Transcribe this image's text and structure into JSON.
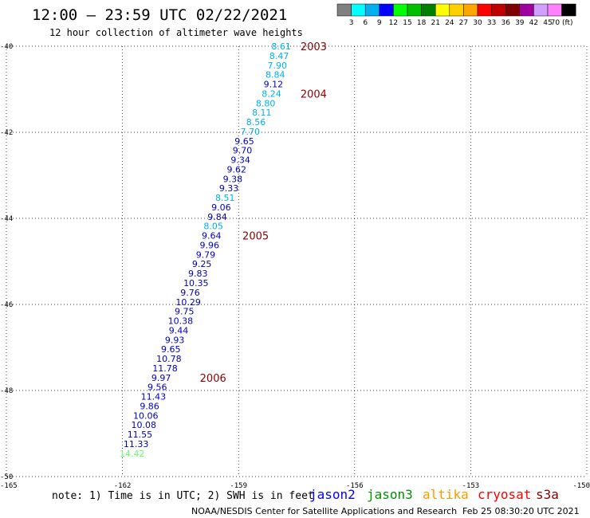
{
  "header": {
    "title": "12:00 – 23:59 UTC 02/22/2021",
    "subtitle": "12 hour collection of altimeter wave heights"
  },
  "color_scale": {
    "labels": [
      "3",
      "6",
      "9",
      "12",
      "15",
      "18",
      "21",
      "24",
      "27",
      "30",
      "33",
      "36",
      "39",
      "42",
      "45",
      "70 (ft)"
    ],
    "colors": [
      "#808080",
      "#00ffff",
      "#00b0f0",
      "#0000ff",
      "#00ff00",
      "#00c000",
      "#008000",
      "#ffff00",
      "#ffd000",
      "#ffa500",
      "#ff0000",
      "#c00000",
      "#800000",
      "#a000a0",
      "#d0a0ff",
      "#ff80ff",
      "#000000"
    ]
  },
  "chart_data": {
    "type": "scatter",
    "title": "12:00 – 23:59 UTC 02/22/2021",
    "subtitle": "12 hour collection of altimeter wave heights",
    "xlim": [
      -165,
      -150
    ],
    "ylim": [
      -50,
      -40
    ],
    "x_tick_labels": [
      "-165",
      "-162",
      "-159",
      "-156",
      "-153",
      "-150"
    ],
    "y_tick_labels": [
      "-40",
      "-42",
      "-44",
      "-46",
      "-48",
      "-50"
    ],
    "grid": true,
    "points": [
      {
        "lon": -157.9,
        "lat": -40.0,
        "swh": "8.61",
        "color": "#00b0f0"
      },
      {
        "lon": -157.95,
        "lat": -40.22,
        "swh": "8.47",
        "color": "#00b0f0"
      },
      {
        "lon": -158.0,
        "lat": -40.44,
        "swh": "7.90",
        "color": "#00b0f0"
      },
      {
        "lon": -158.05,
        "lat": -40.66,
        "swh": "8.84",
        "color": "#00b0f0"
      },
      {
        "lon": -158.1,
        "lat": -40.88,
        "swh": "9.12",
        "color": "#0000c0"
      },
      {
        "lon": -158.15,
        "lat": -41.1,
        "swh": "8.24",
        "color": "#00b0f0"
      },
      {
        "lon": -158.3,
        "lat": -41.32,
        "swh": "8.80",
        "color": "#00b0f0"
      },
      {
        "lon": -158.4,
        "lat": -41.54,
        "swh": "8.11",
        "color": "#00b0f0"
      },
      {
        "lon": -158.55,
        "lat": -41.76,
        "swh": "8.56",
        "color": "#00b0f0"
      },
      {
        "lon": -158.7,
        "lat": -41.98,
        "swh": "7.70",
        "color": "#00b0f0"
      },
      {
        "lon": -158.85,
        "lat": -42.2,
        "swh": "9.65",
        "color": "#0000c0"
      },
      {
        "lon": -158.9,
        "lat": -42.42,
        "swh": "9.70",
        "color": "#0000c0"
      },
      {
        "lon": -158.95,
        "lat": -42.64,
        "swh": "9.34",
        "color": "#0000c0"
      },
      {
        "lon": -159.05,
        "lat": -42.86,
        "swh": "9.62",
        "color": "#0000c0"
      },
      {
        "lon": -159.15,
        "lat": -43.08,
        "swh": "9.38",
        "color": "#0000c0"
      },
      {
        "lon": -159.25,
        "lat": -43.3,
        "swh": "9.33",
        "color": "#0000c0"
      },
      {
        "lon": -159.35,
        "lat": -43.52,
        "swh": "8.51",
        "color": "#00b0f0"
      },
      {
        "lon": -159.45,
        "lat": -43.74,
        "swh": "9.06",
        "color": "#0000c0"
      },
      {
        "lon": -159.55,
        "lat": -43.96,
        "swh": "9.84",
        "color": "#0000c0"
      },
      {
        "lon": -159.65,
        "lat": -44.18,
        "swh": "8.05",
        "color": "#00b0f0"
      },
      {
        "lon": -159.7,
        "lat": -44.4,
        "swh": "9.64",
        "color": "#0000c0"
      },
      {
        "lon": -159.75,
        "lat": -44.62,
        "swh": "9.96",
        "color": "#0000c0"
      },
      {
        "lon": -159.85,
        "lat": -44.84,
        "swh": "9.79",
        "color": "#0000c0"
      },
      {
        "lon": -159.95,
        "lat": -45.06,
        "swh": "9.25",
        "color": "#0000c0"
      },
      {
        "lon": -160.05,
        "lat": -45.28,
        "swh": "9.83",
        "color": "#0000c0"
      },
      {
        "lon": -160.1,
        "lat": -45.5,
        "swh": "10.35",
        "color": "#0000c0"
      },
      {
        "lon": -160.25,
        "lat": -45.72,
        "swh": "9.76",
        "color": "#0000c0"
      },
      {
        "lon": -160.3,
        "lat": -45.94,
        "swh": "10.29",
        "color": "#0000c0"
      },
      {
        "lon": -160.4,
        "lat": -46.16,
        "swh": "9.75",
        "color": "#0000c0"
      },
      {
        "lon": -160.5,
        "lat": -46.38,
        "swh": "10.38",
        "color": "#0000c0"
      },
      {
        "lon": -160.55,
        "lat": -46.6,
        "swh": "9.44",
        "color": "#0000c0"
      },
      {
        "lon": -160.65,
        "lat": -46.82,
        "swh": "9.93",
        "color": "#0000c0"
      },
      {
        "lon": -160.75,
        "lat": -47.04,
        "swh": "9.65",
        "color": "#0000c0"
      },
      {
        "lon": -160.8,
        "lat": -47.26,
        "swh": "10.78",
        "color": "#0000c0"
      },
      {
        "lon": -160.9,
        "lat": -47.48,
        "swh": "11.78",
        "color": "#0000c0"
      },
      {
        "lon": -161.0,
        "lat": -47.7,
        "swh": "9.97",
        "color": "#0000c0"
      },
      {
        "lon": -161.1,
        "lat": -47.92,
        "swh": "9.56",
        "color": "#0000c0"
      },
      {
        "lon": -161.2,
        "lat": -48.14,
        "swh": "11.43",
        "color": "#0000c0"
      },
      {
        "lon": -161.3,
        "lat": -48.36,
        "swh": "9.86",
        "color": "#0000c0"
      },
      {
        "lon": -161.4,
        "lat": -48.58,
        "swh": "10.06",
        "color": "#0000c0"
      },
      {
        "lon": -161.45,
        "lat": -48.8,
        "swh": "10.08",
        "color": "#0000c0"
      },
      {
        "lon": -161.55,
        "lat": -49.02,
        "swh": "11.55",
        "color": "#0000c0"
      },
      {
        "lon": -161.65,
        "lat": -49.24,
        "swh": "11.33",
        "color": "#0000c0"
      },
      {
        "lon": -161.75,
        "lat": -49.46,
        "swh": "14.42",
        "color": "#66ff66"
      }
    ],
    "cycle_labels": [
      {
        "text": "2003",
        "lon": -157.4,
        "lat": -40.0
      },
      {
        "text": "2004",
        "lon": -157.4,
        "lat": -41.1
      },
      {
        "text": "2005",
        "lon": -158.9,
        "lat": -44.4
      },
      {
        "text": "2006",
        "lon": -160.0,
        "lat": -47.7
      }
    ]
  },
  "satellites": [
    {
      "name": "jason2",
      "color": "#0000ff"
    },
    {
      "name": "jason3",
      "color": "#009000"
    },
    {
      "name": "altika",
      "color": "#ff9900"
    },
    {
      "name": "cryosat",
      "color": "#ff0000"
    },
    {
      "name": "s3a",
      "color": "#8b0000"
    }
  ],
  "note": "note: 1) Time is in UTC; 2) SWH is in feet",
  "footer": {
    "org": "NOAA/NESDIS Center for Satellite Applications and Research",
    "timestamp": "Feb 25 08:30:20 UTC 2021"
  }
}
